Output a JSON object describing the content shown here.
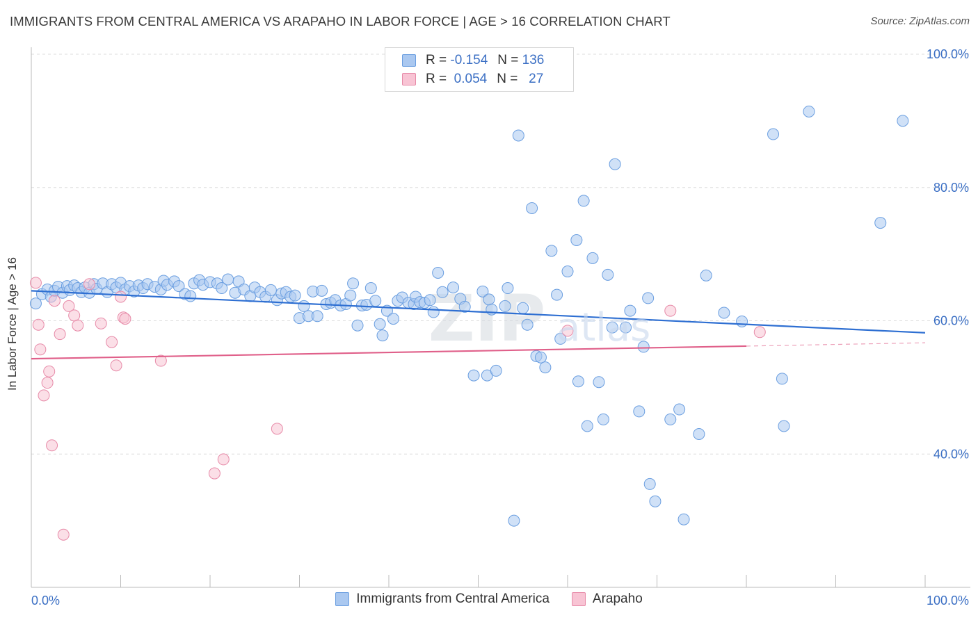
{
  "title": "IMMIGRANTS FROM CENTRAL AMERICA VS ARAPAHO IN LABOR FORCE | AGE > 16 CORRELATION CHART",
  "source": "Source: ZipAtlas.com",
  "watermark": "ZIPatlas",
  "legend": {
    "rows": [
      {
        "r_label": "R =",
        "r_value": "-0.154",
        "n_label": "N =",
        "n_value": "136",
        "color": "#aac8f0",
        "border": "#6a9ee0"
      },
      {
        "r_label": "R =",
        "r_value": "0.054",
        "n_label": "N =",
        "n_value": "27",
        "color": "#f8c4d4",
        "border": "#e78aa8"
      }
    ]
  },
  "bottom_legend": [
    {
      "label": "Immigrants from Central America",
      "color": "#aac8f0",
      "border": "#6a9ee0"
    },
    {
      "label": "Arapaho",
      "color": "#f8c4d4",
      "border": "#e78aa8"
    }
  ],
  "chart_data": {
    "type": "scatter",
    "title": "IMMIGRANTS FROM CENTRAL AMERICA VS ARAPAHO IN LABOR FORCE | AGE > 16 CORRELATION CHART",
    "xlabel": "",
    "ylabel": "In Labor Force | Age > 16",
    "xlim": [
      0,
      100
    ],
    "ylim": [
      20,
      100
    ],
    "x_tick_labels": [
      "0.0%",
      "100.0%"
    ],
    "y_tick_labels": [
      {
        "value": 40,
        "label": "40.0%"
      },
      {
        "value": 60,
        "label": "60.0%"
      },
      {
        "value": 80,
        "label": "80.0%"
      },
      {
        "value": 100,
        "label": "100.0%"
      }
    ],
    "grid": true,
    "legend_position": "top-center",
    "series": [
      {
        "name": "Immigrants from Central America",
        "color": "#6a9ee0",
        "fill": "#aac8f0",
        "trend": {
          "x": [
            0,
            100
          ],
          "y": [
            64.5,
            58.2
          ],
          "color": "#2e6fd2"
        },
        "points": [
          [
            0.5,
            62.6
          ],
          [
            1.2,
            64.0
          ],
          [
            1.8,
            64.7
          ],
          [
            2.2,
            63.6
          ],
          [
            2.6,
            64.5
          ],
          [
            3.0,
            65.1
          ],
          [
            3.5,
            64.2
          ],
          [
            4.0,
            65.2
          ],
          [
            4.3,
            64.6
          ],
          [
            4.8,
            65.3
          ],
          [
            5.2,
            64.9
          ],
          [
            5.6,
            64.3
          ],
          [
            6.0,
            65.0
          ],
          [
            6.5,
            64.2
          ],
          [
            7.0,
            65.5
          ],
          [
            7.3,
            64.8
          ],
          [
            8.0,
            65.6
          ],
          [
            8.5,
            64.3
          ],
          [
            9.0,
            65.5
          ],
          [
            9.5,
            65.0
          ],
          [
            10.0,
            65.7
          ],
          [
            10.5,
            64.7
          ],
          [
            11.0,
            65.2
          ],
          [
            11.5,
            64.4
          ],
          [
            12.0,
            65.3
          ],
          [
            12.5,
            64.9
          ],
          [
            13.0,
            65.5
          ],
          [
            13.8,
            65.1
          ],
          [
            14.5,
            64.7
          ],
          [
            14.8,
            66.0
          ],
          [
            15.2,
            65.4
          ],
          [
            16.0,
            65.9
          ],
          [
            16.5,
            65.2
          ],
          [
            17.2,
            64.0
          ],
          [
            17.8,
            63.7
          ],
          [
            18.2,
            65.6
          ],
          [
            18.8,
            66.1
          ],
          [
            19.2,
            65.4
          ],
          [
            20.0,
            65.8
          ],
          [
            20.8,
            65.6
          ],
          [
            21.3,
            64.9
          ],
          [
            22.0,
            66.2
          ],
          [
            22.8,
            64.2
          ],
          [
            23.2,
            65.9
          ],
          [
            23.8,
            64.7
          ],
          [
            24.5,
            63.7
          ],
          [
            25.0,
            65.0
          ],
          [
            25.6,
            64.3
          ],
          [
            26.2,
            63.6
          ],
          [
            26.8,
            64.6
          ],
          [
            27.5,
            63.1
          ],
          [
            28.0,
            64.1
          ],
          [
            28.5,
            64.3
          ],
          [
            29.0,
            63.6
          ],
          [
            29.5,
            63.8
          ],
          [
            30.0,
            60.4
          ],
          [
            30.5,
            62.2
          ],
          [
            31.0,
            60.7
          ],
          [
            31.5,
            64.4
          ],
          [
            32.0,
            60.7
          ],
          [
            32.5,
            64.5
          ],
          [
            33.0,
            62.5
          ],
          [
            33.5,
            62.7
          ],
          [
            34.0,
            63.1
          ],
          [
            34.6,
            62.3
          ],
          [
            35.2,
            62.5
          ],
          [
            35.7,
            63.8
          ],
          [
            36.0,
            65.6
          ],
          [
            36.5,
            59.3
          ],
          [
            37.0,
            62.3
          ],
          [
            37.5,
            62.4
          ],
          [
            38.0,
            64.9
          ],
          [
            38.5,
            63.0
          ],
          [
            39.0,
            59.5
          ],
          [
            39.3,
            57.8
          ],
          [
            39.8,
            61.5
          ],
          [
            40.5,
            60.3
          ],
          [
            41.0,
            63.0
          ],
          [
            41.5,
            63.5
          ],
          [
            42.2,
            62.7
          ],
          [
            42.8,
            62.5
          ],
          [
            43.0,
            63.6
          ],
          [
            43.5,
            62.8
          ],
          [
            44.0,
            62.7
          ],
          [
            44.6,
            63.1
          ],
          [
            45.0,
            61.3
          ],
          [
            45.5,
            67.2
          ],
          [
            46.0,
            64.3
          ],
          [
            47.2,
            65.0
          ],
          [
            48.0,
            63.3
          ],
          [
            48.5,
            62.1
          ],
          [
            49.5,
            51.8
          ],
          [
            50.5,
            64.4
          ],
          [
            51.0,
            51.8
          ],
          [
            51.2,
            63.2
          ],
          [
            51.5,
            61.7
          ],
          [
            52.0,
            52.5
          ],
          [
            53.0,
            62.2
          ],
          [
            53.3,
            64.9
          ],
          [
            54.0,
            30.0
          ],
          [
            54.5,
            87.8
          ],
          [
            55.0,
            61.9
          ],
          [
            55.5,
            59.4
          ],
          [
            56.0,
            76.9
          ],
          [
            56.5,
            54.7
          ],
          [
            57.0,
            54.5
          ],
          [
            57.5,
            53.0
          ],
          [
            58.2,
            70.5
          ],
          [
            58.8,
            63.9
          ],
          [
            59.2,
            57.3
          ],
          [
            60.0,
            67.4
          ],
          [
            61.0,
            72.1
          ],
          [
            61.2,
            50.9
          ],
          [
            61.8,
            78.0
          ],
          [
            62.2,
            44.2
          ],
          [
            62.8,
            69.4
          ],
          [
            63.5,
            50.8
          ],
          [
            64.0,
            45.2
          ],
          [
            64.5,
            66.9
          ],
          [
            65.0,
            59.0
          ],
          [
            65.3,
            83.5
          ],
          [
            66.5,
            59.0
          ],
          [
            67.0,
            61.5
          ],
          [
            68.0,
            46.4
          ],
          [
            68.5,
            56.1
          ],
          [
            69.0,
            63.4
          ],
          [
            69.2,
            35.5
          ],
          [
            69.8,
            32.9
          ],
          [
            71.5,
            45.2
          ],
          [
            72.5,
            46.7
          ],
          [
            73.0,
            30.2
          ],
          [
            74.7,
            43.0
          ],
          [
            75.5,
            66.8
          ],
          [
            77.5,
            61.2
          ],
          [
            79.5,
            59.9
          ],
          [
            83.0,
            88.0
          ],
          [
            84.0,
            51.3
          ],
          [
            84.2,
            44.2
          ],
          [
            87.0,
            91.4
          ],
          [
            95.0,
            74.7
          ],
          [
            97.5,
            90.0
          ]
        ]
      },
      {
        "name": "Arapaho",
        "color": "#e78aa8",
        "fill": "#f8c4d4",
        "trend": {
          "x": [
            0,
            80
          ],
          "y": [
            54.3,
            56.2
          ],
          "color": "#e0608a"
        },
        "trend_dashed": {
          "x": [
            80,
            100
          ],
          "y": [
            56.2,
            56.7
          ]
        },
        "points": [
          [
            0.5,
            65.7
          ],
          [
            0.8,
            59.4
          ],
          [
            1.0,
            55.7
          ],
          [
            1.4,
            48.8
          ],
          [
            1.8,
            50.7
          ],
          [
            2.0,
            52.4
          ],
          [
            2.3,
            41.3
          ],
          [
            2.6,
            63.0
          ],
          [
            3.2,
            58.0
          ],
          [
            3.6,
            27.9
          ],
          [
            4.2,
            62.2
          ],
          [
            4.8,
            60.8
          ],
          [
            5.2,
            59.3
          ],
          [
            6.5,
            65.5
          ],
          [
            7.8,
            59.6
          ],
          [
            9.0,
            56.8
          ],
          [
            9.5,
            53.3
          ],
          [
            10.0,
            63.6
          ],
          [
            10.3,
            60.5
          ],
          [
            10.5,
            60.3
          ],
          [
            14.5,
            54.0
          ],
          [
            20.5,
            37.1
          ],
          [
            21.5,
            39.2
          ],
          [
            27.5,
            43.8
          ],
          [
            60.0,
            58.5
          ],
          [
            71.5,
            61.5
          ],
          [
            81.5,
            58.3
          ]
        ]
      }
    ]
  }
}
